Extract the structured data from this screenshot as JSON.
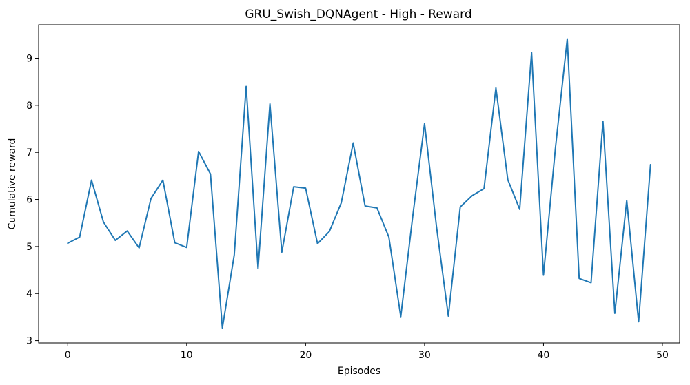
{
  "chart_data": {
    "type": "line",
    "title": "GRU_Swish_DQNAgent - High - Reward",
    "xlabel": "Episodes",
    "ylabel": "Cumulative reward",
    "xlim": [
      -2.45,
      51.45
    ],
    "ylim": [
      2.95,
      9.71
    ],
    "xticks": [
      0,
      10,
      20,
      30,
      40,
      50
    ],
    "yticks": [
      3,
      4,
      5,
      6,
      7,
      8,
      9
    ],
    "grid": false,
    "line_color": "#1f77b4",
    "x": [
      0,
      1,
      2,
      3,
      4,
      5,
      6,
      7,
      8,
      9,
      10,
      11,
      12,
      13,
      14,
      15,
      16,
      17,
      18,
      19,
      20,
      21,
      22,
      23,
      24,
      25,
      26,
      27,
      28,
      29,
      30,
      31,
      32,
      33,
      34,
      35,
      36,
      37,
      38,
      39,
      40,
      41,
      42,
      43,
      44,
      45,
      46,
      47,
      48,
      49
    ],
    "series": [
      {
        "values": [
          5.07,
          5.2,
          6.41,
          5.52,
          5.13,
          5.33,
          4.97,
          6.02,
          6.41,
          5.08,
          4.98,
          7.02,
          6.54,
          3.27,
          4.82,
          8.4,
          4.53,
          8.03,
          4.88,
          6.27,
          6.24,
          5.06,
          5.32,
          5.93,
          7.2,
          5.86,
          5.82,
          5.2,
          3.51,
          5.63,
          7.61,
          5.43,
          3.52,
          5.84,
          6.08,
          6.23,
          8.37,
          6.42,
          5.79,
          9.12,
          4.39,
          7.08,
          9.41,
          4.32,
          4.23,
          7.66,
          3.58,
          5.98,
          3.4,
          6.74
        ]
      }
    ]
  }
}
